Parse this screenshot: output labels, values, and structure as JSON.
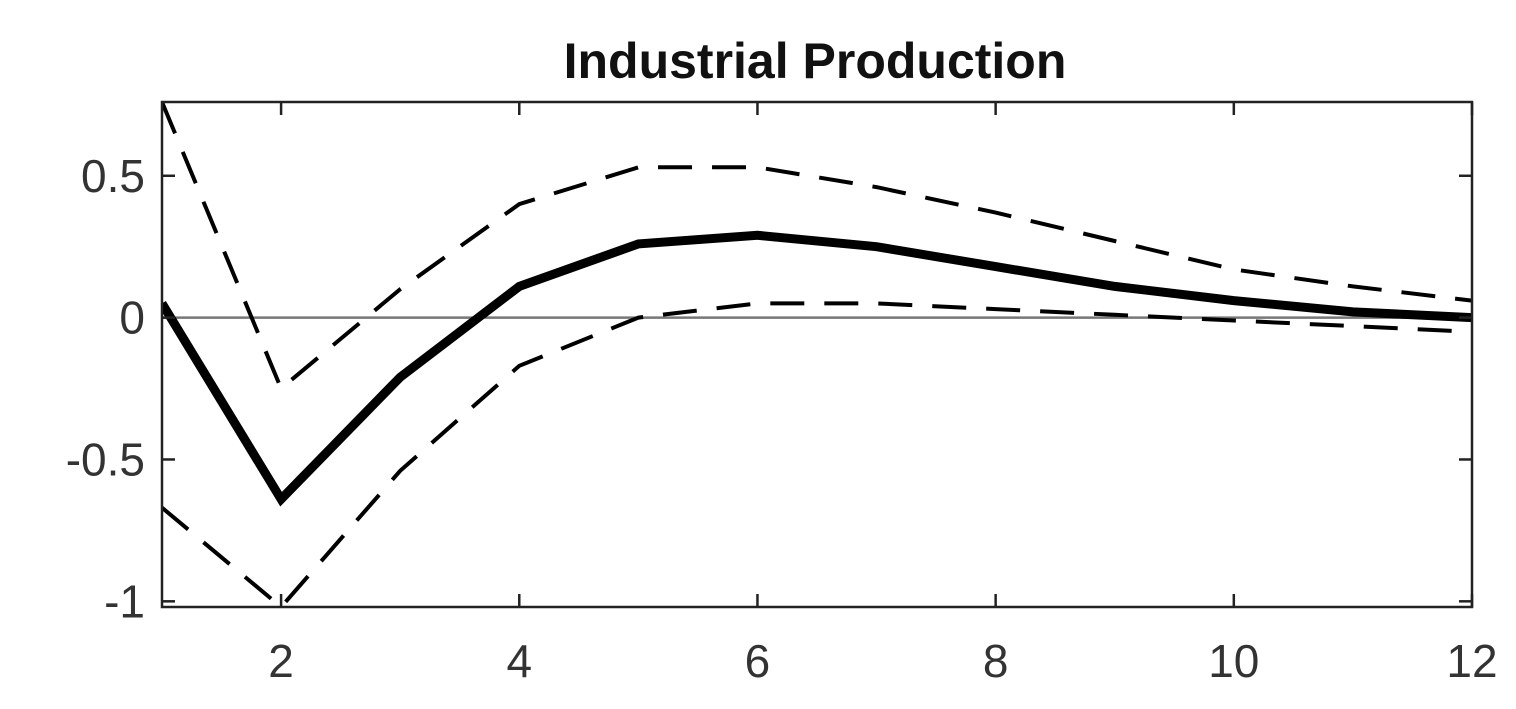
{
  "chart_data": {
    "type": "line",
    "title": "Industrial Production",
    "xlabel": "",
    "ylabel": "",
    "xlim": [
      1,
      12
    ],
    "ylim": [
      -1.02,
      0.76
    ],
    "x_ticks": [
      2,
      4,
      6,
      8,
      10,
      12
    ],
    "x_tick_labels": [
      "2",
      "4",
      "6",
      "8",
      "10",
      "12"
    ],
    "y_ticks": [
      0.5,
      0,
      -0.5,
      -1
    ],
    "y_tick_labels": [
      "0.5",
      "0",
      "-0.5",
      "-1"
    ],
    "grid": false,
    "legend": "none",
    "reference_line": {
      "y": 0,
      "color": "#777777"
    },
    "x": [
      1,
      2,
      3,
      4,
      5,
      6,
      7,
      8,
      9,
      10,
      11,
      12
    ],
    "series": [
      {
        "style": "solid",
        "color": "#000000",
        "values": [
          0.05,
          -0.64,
          -0.21,
          0.11,
          0.26,
          0.29,
          0.25,
          0.18,
          0.11,
          0.06,
          0.02,
          0.0
        ]
      },
      {
        "style": "dashed",
        "color": "#000000",
        "values": [
          0.76,
          -0.25,
          0.1,
          0.4,
          0.53,
          0.53,
          0.46,
          0.37,
          0.27,
          0.17,
          0.11,
          0.06
        ]
      },
      {
        "style": "dashed",
        "color": "#000000",
        "values": [
          -0.67,
          -1.02,
          -0.54,
          -0.17,
          0.0,
          0.05,
          0.05,
          0.03,
          0.01,
          -0.01,
          -0.03,
          -0.05
        ]
      }
    ]
  }
}
